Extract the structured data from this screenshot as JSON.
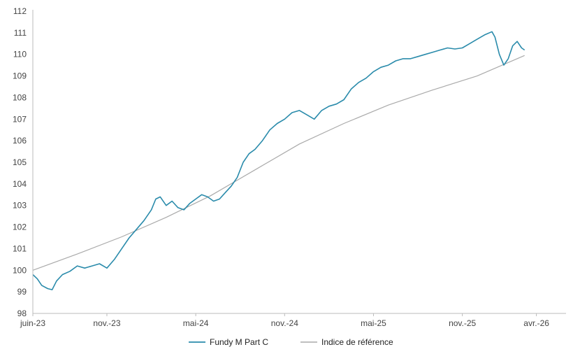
{
  "chart_data": {
    "type": "line",
    "x_ticks": [
      "juin-23",
      "nov.-23",
      "mai-24",
      "nov.-24",
      "mai-25",
      "nov.-25",
      "avr.-26"
    ],
    "x_tick_months": [
      0,
      5,
      11,
      17,
      23,
      29,
      34
    ],
    "y_ticks": [
      98,
      99,
      100,
      101,
      102,
      103,
      104,
      105,
      106,
      107,
      108,
      109,
      110,
      111,
      112
    ],
    "ylim": [
      98,
      112
    ],
    "xlim_months": [
      0,
      36
    ],
    "grid": false,
    "legend_position": "bottom-center",
    "series": [
      {
        "name": "Fundy M Part C",
        "color": "#2a8bab",
        "points": [
          [
            0,
            99.8
          ],
          [
            0.3,
            99.6
          ],
          [
            0.6,
            99.3
          ],
          [
            1.0,
            99.15
          ],
          [
            1.3,
            99.1
          ],
          [
            1.6,
            99.5
          ],
          [
            2.0,
            99.8
          ],
          [
            2.5,
            99.95
          ],
          [
            3.0,
            100.2
          ],
          [
            3.5,
            100.1
          ],
          [
            4.0,
            100.2
          ],
          [
            4.5,
            100.3
          ],
          [
            5.0,
            100.1
          ],
          [
            5.5,
            100.5
          ],
          [
            6.0,
            101.0
          ],
          [
            6.5,
            101.5
          ],
          [
            7.0,
            101.9
          ],
          [
            7.5,
            102.3
          ],
          [
            8.0,
            102.8
          ],
          [
            8.3,
            103.3
          ],
          [
            8.6,
            103.4
          ],
          [
            9.0,
            103.0
          ],
          [
            9.4,
            103.2
          ],
          [
            9.8,
            102.9
          ],
          [
            10.2,
            102.8
          ],
          [
            10.6,
            103.1
          ],
          [
            11.0,
            103.3
          ],
          [
            11.4,
            103.5
          ],
          [
            11.8,
            103.4
          ],
          [
            12.2,
            103.2
          ],
          [
            12.6,
            103.3
          ],
          [
            13.0,
            103.6
          ],
          [
            13.4,
            103.9
          ],
          [
            13.8,
            104.3
          ],
          [
            14.2,
            105.0
          ],
          [
            14.6,
            105.4
          ],
          [
            15.0,
            105.6
          ],
          [
            15.5,
            106.0
          ],
          [
            16.0,
            106.5
          ],
          [
            16.5,
            106.8
          ],
          [
            17.0,
            107.0
          ],
          [
            17.5,
            107.3
          ],
          [
            18.0,
            107.4
          ],
          [
            18.5,
            107.2
          ],
          [
            19.0,
            107.0
          ],
          [
            19.5,
            107.4
          ],
          [
            20.0,
            107.6
          ],
          [
            20.5,
            107.7
          ],
          [
            21.0,
            107.9
          ],
          [
            21.5,
            108.4
          ],
          [
            22.0,
            108.7
          ],
          [
            22.5,
            108.9
          ],
          [
            23.0,
            109.2
          ],
          [
            23.5,
            109.4
          ],
          [
            24.0,
            109.5
          ],
          [
            24.5,
            109.7
          ],
          [
            25.0,
            109.8
          ],
          [
            25.5,
            109.8
          ],
          [
            26.0,
            109.9
          ],
          [
            26.5,
            110.0
          ],
          [
            27.0,
            110.1
          ],
          [
            27.5,
            110.2
          ],
          [
            28.0,
            110.3
          ],
          [
            28.5,
            110.25
          ],
          [
            29.0,
            110.3
          ],
          [
            29.5,
            110.5
          ],
          [
            30.0,
            110.7
          ],
          [
            30.5,
            110.9
          ],
          [
            31.0,
            111.05
          ],
          [
            31.2,
            110.8
          ],
          [
            31.5,
            110.0
          ],
          [
            31.8,
            109.5
          ],
          [
            32.1,
            109.8
          ],
          [
            32.4,
            110.4
          ],
          [
            32.7,
            110.6
          ],
          [
            33.0,
            110.3
          ],
          [
            33.2,
            110.2
          ]
        ]
      },
      {
        "name": "Indice de référence",
        "color": "#aaaaaa",
        "points": [
          [
            0,
            100.0
          ],
          [
            3,
            100.75
          ],
          [
            6,
            101.55
          ],
          [
            9,
            102.45
          ],
          [
            12,
            103.45
          ],
          [
            15,
            104.65
          ],
          [
            18,
            105.85
          ],
          [
            21,
            106.8
          ],
          [
            24,
            107.65
          ],
          [
            27,
            108.35
          ],
          [
            30,
            109.0
          ],
          [
            33.2,
            109.95
          ]
        ]
      }
    ]
  }
}
